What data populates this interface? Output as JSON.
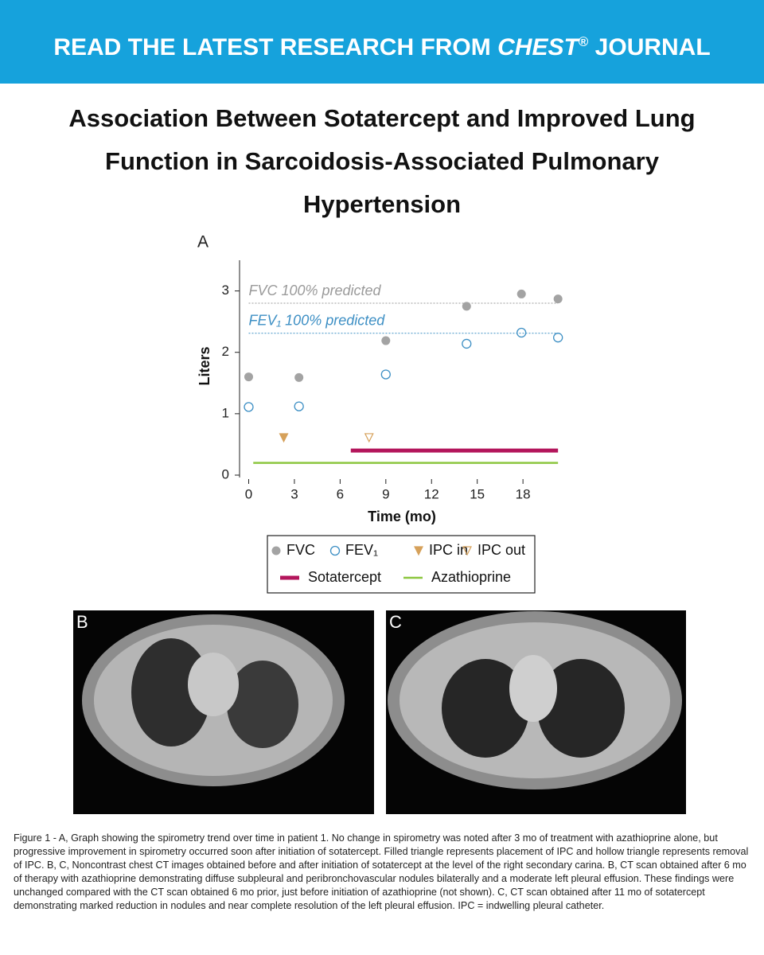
{
  "header": {
    "prefix": "READ THE LATEST RESEARCH FROM",
    "journal": "CHEST",
    "mark": "®",
    "suffix": "JOURNAL"
  },
  "title_lines": [
    "Association Between Sotatercept and Improved Lung",
    "Function in Sarcoidosis-Associated Pulmonary",
    "Hypertension"
  ],
  "chart_data": {
    "type": "scatter",
    "panel_label": "A",
    "x_label": "Time (mo)",
    "y_label": "Liters",
    "xlim": [
      -0.6,
      20.5
    ],
    "ylim": [
      0,
      3.5
    ],
    "xticks": [
      0,
      3,
      6,
      9,
      12,
      15,
      18
    ],
    "yticks": [
      0,
      1,
      2,
      3
    ],
    "reference_lines": [
      {
        "label": "FVC 100% predicted",
        "value": 2.8,
        "color": "#9a9a9a"
      },
      {
        "label": "FEV₁ 100% predicted",
        "value": 2.31,
        "color": "#3d8fc4"
      }
    ],
    "series": [
      {
        "name": "FVC",
        "mark": "filled-circle",
        "color": "#a3a3a3",
        "x": [
          0,
          3.3,
          9,
          14.3,
          17.9,
          20.3
        ],
        "values": [
          1.6,
          1.59,
          2.19,
          2.75,
          2.95,
          2.87
        ]
      },
      {
        "name": "FEV₁",
        "mark": "open-circle",
        "color": "#3d8fc4",
        "x": [
          0,
          3.3,
          9,
          14.3,
          17.9,
          20.3
        ],
        "values": [
          1.11,
          1.12,
          1.64,
          2.14,
          2.32,
          2.24
        ]
      },
      {
        "name": "IPC in",
        "mark": "filled-triangle",
        "color": "#d6a15a",
        "x": [
          2.3
        ],
        "values": [
          0.61
        ]
      },
      {
        "name": "IPC out",
        "mark": "open-triangle",
        "color": "#d6a15a",
        "x": [
          7.9
        ],
        "values": [
          0.61
        ]
      },
      {
        "name": "Sotatercept",
        "mark": "line",
        "color": "#b3155b",
        "x": [
          6.7,
          20.3
        ],
        "values": [
          0.4,
          0.4
        ]
      },
      {
        "name": "Azathioprine",
        "mark": "line",
        "color": "#8cc63e",
        "x": [
          0.3,
          20.3
        ],
        "values": [
          0.2,
          0.2
        ]
      }
    ]
  },
  "panels": [
    {
      "label": "B"
    },
    {
      "label": "C"
    }
  ],
  "caption": "Figure 1 - A, Graph showing the spirometry trend over time in patient 1. No change in spirometry was noted after 3 mo of treatment with azathioprine alone, but progressive improvement in spirometry occurred soon after initiation of sotatercept. Filled triangle represents placement of IPC and hollow triangle represents removal of IPC. B, C, Noncontrast chest CT images obtained before and after initiation of sotatercept at the level of the right secondary carina. B, CT scan obtained after 6 mo of therapy with azathioprine demonstrating diffuse subpleural and peribronchovascular nodules bilaterally and a moderate left pleural effusion. These findings were unchanged compared with the CT scan obtained 6 mo prior, just before initiation of azathioprine (not shown). C, CT scan obtained after 11 mo of sotatercept demonstrating marked reduction in nodules and near complete resolution of the left pleural effusion. IPC = indwelling pleural catheter."
}
